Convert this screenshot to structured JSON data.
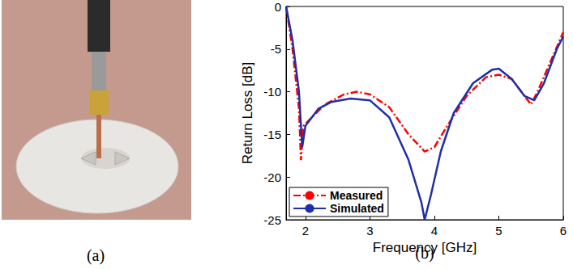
{
  "photo": {
    "caption": "(a)"
  },
  "chart_data": {
    "type": "line",
    "caption": "(b)",
    "x_label": "Frequency [GHz]",
    "y_label": "Return Loss [dB]",
    "xlim": [
      1.7,
      6
    ],
    "xticks": [
      2,
      3,
      4,
      5,
      6
    ],
    "ylim": [
      -25,
      0
    ],
    "yticks": [
      -25,
      -20,
      -15,
      -10,
      -5,
      0
    ],
    "grid": false,
    "legend": "lower left",
    "series": [
      {
        "name": "Measured",
        "color": "#ff0000",
        "line_style": "dashdot",
        "x": [
          1.7,
          1.8,
          1.9,
          1.93,
          1.97,
          2.1,
          2.3,
          2.6,
          2.8,
          3.0,
          3.3,
          3.6,
          3.85,
          4.0,
          4.2,
          4.5,
          4.8,
          5.0,
          5.2,
          5.4,
          5.5,
          5.6,
          5.8,
          6.0
        ],
        "values": [
          0,
          -5,
          -12,
          -18,
          -14,
          -13,
          -11.5,
          -10.3,
          -10,
          -10.3,
          -11.8,
          -15,
          -17,
          -16.5,
          -14,
          -10.5,
          -8.3,
          -8,
          -8.5,
          -10.5,
          -11.5,
          -10,
          -6.5,
          -3
        ]
      },
      {
        "name": "Simulated",
        "color": "#1f2fa8",
        "line_style": "solid",
        "x": [
          1.7,
          1.8,
          1.9,
          1.95,
          2.0,
          2.2,
          2.4,
          2.7,
          3.0,
          3.3,
          3.6,
          3.8,
          3.85,
          3.95,
          4.1,
          4.3,
          4.6,
          4.9,
          5.0,
          5.2,
          5.4,
          5.55,
          5.7,
          5.9,
          6.0
        ],
        "values": [
          0,
          -4,
          -10,
          -16.5,
          -14,
          -12,
          -11.2,
          -10.8,
          -11,
          -13,
          -18,
          -23,
          -25,
          -22,
          -17,
          -12.5,
          -9,
          -7.4,
          -7.3,
          -8.5,
          -10.5,
          -11,
          -9,
          -5,
          -3.5
        ]
      }
    ]
  }
}
